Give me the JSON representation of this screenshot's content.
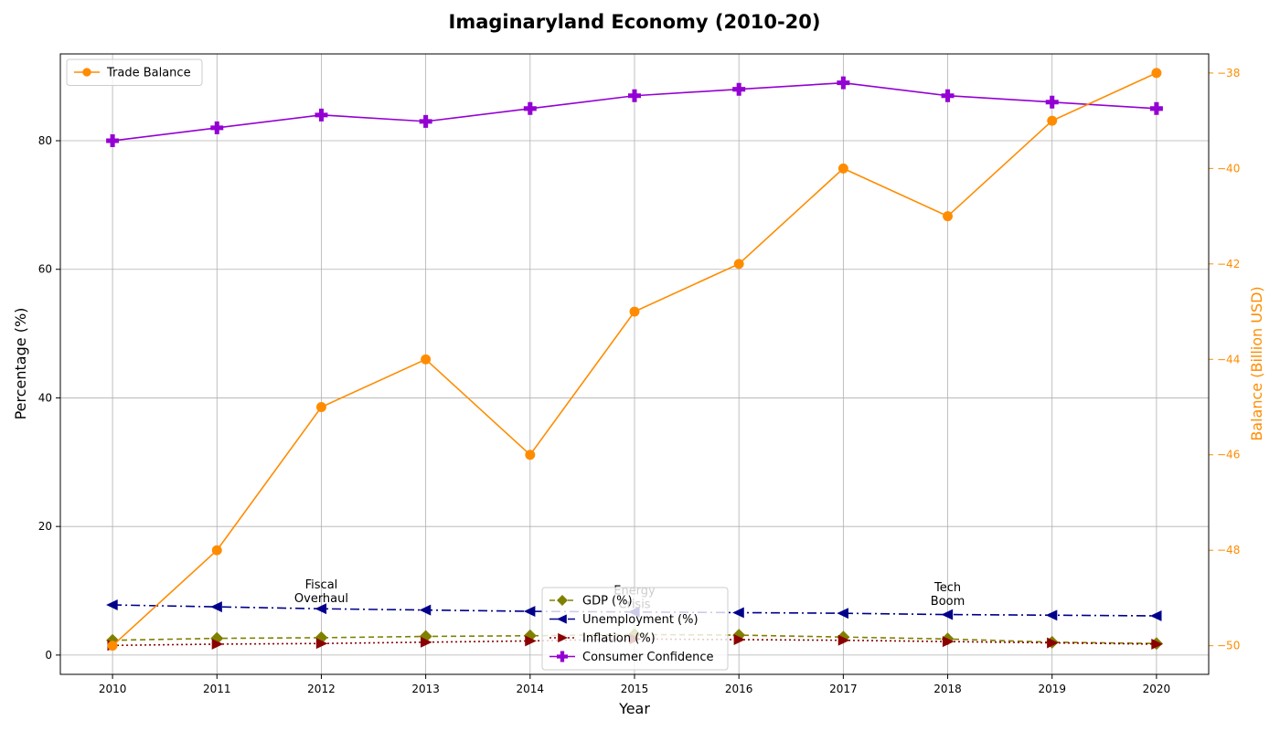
{
  "chart_data": {
    "type": "line",
    "title": "Imaginaryland Economy (2010-20)",
    "xlabel": "Year",
    "ylabel": "Percentage (%)",
    "y2label": "Balance (Billion USD)",
    "x": [
      2010,
      2011,
      2012,
      2013,
      2014,
      2015,
      2016,
      2017,
      2018,
      2019,
      2020
    ],
    "x_ticks": [
      "2010",
      "2011",
      "2012",
      "2013",
      "2014",
      "2015",
      "2016",
      "2017",
      "2018",
      "2019",
      "2020"
    ],
    "ylim": [
      -3,
      93.5
    ],
    "y_ticks": [
      "0",
      "20",
      "40",
      "60",
      "80"
    ],
    "y2lim": [
      -50.6,
      -37.6
    ],
    "y2_ticks": [
      "−50",
      "−48",
      "−46",
      "−44",
      "−42",
      "−40",
      "−38"
    ],
    "grid": true,
    "series": [
      {
        "name": "GDP (%)",
        "axis": "left",
        "color": "#808000",
        "dash": "6,4",
        "marker": "diamond",
        "values": [
          2.3,
          2.6,
          2.7,
          2.9,
          3.0,
          3.2,
          3.1,
          2.8,
          2.5,
          2.0,
          1.8
        ]
      },
      {
        "name": "Unemployment (%)",
        "axis": "left",
        "color": "#00008b",
        "dash": "10,4,2,4",
        "marker": "triangle-left",
        "values": [
          7.8,
          7.5,
          7.2,
          7.0,
          6.8,
          6.7,
          6.6,
          6.5,
          6.3,
          6.2,
          6.1
        ]
      },
      {
        "name": "Inflation (%)",
        "axis": "left",
        "color": "#8b0000",
        "dash": "2,3",
        "marker": "triangle-right",
        "values": [
          1.5,
          1.7,
          1.8,
          2.0,
          2.2,
          2.5,
          2.4,
          2.3,
          2.1,
          1.9,
          1.7
        ]
      },
      {
        "name": "Consumer Confidence",
        "axis": "left",
        "color": "#9400d3",
        "dash": "",
        "marker": "plus",
        "values": [
          80,
          82,
          84,
          83,
          85,
          87,
          88,
          89,
          87,
          86,
          85
        ]
      },
      {
        "name": "Trade Balance",
        "axis": "right",
        "color": "#ff8c00",
        "dash": "",
        "marker": "circle",
        "values": [
          -50,
          -48,
          -45,
          -44,
          -46,
          -43,
          -42,
          -40,
          -41,
          -39,
          -38
        ]
      }
    ],
    "annotations": [
      {
        "lines": [
          "Fiscal",
          "Overhaul"
        ],
        "x": 2012,
        "y": 9.2
      },
      {
        "lines": [
          "Energy",
          "Crisis"
        ],
        "x": 2015,
        "y": 8.3
      },
      {
        "lines": [
          "Tech",
          "Boom"
        ],
        "x": 2018,
        "y": 8.8
      }
    ],
    "legend_main": {
      "placement": "lower-center",
      "entries": [
        "GDP (%)",
        "Unemployment (%)",
        "Inflation (%)",
        "Consumer Confidence"
      ]
    },
    "legend_secondary": {
      "placement": "upper-left",
      "entries": [
        "Trade Balance"
      ]
    }
  }
}
